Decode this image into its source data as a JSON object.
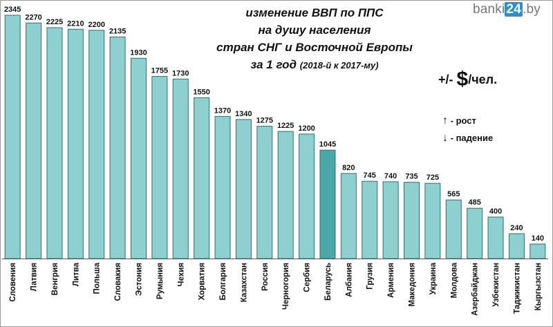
{
  "brand": {
    "prefix": "banki",
    "number": "24",
    "suffix": ".by"
  },
  "unit": {
    "prefix": "+/- ",
    "symbol": "$",
    "suffix": "/чел."
  },
  "legend": {
    "up_arrow": "↑",
    "up_label": "- рост",
    "down_arrow": "↓",
    "down_label": "- падение"
  },
  "colors": {
    "bar": "#8ecfcf",
    "bar_highlight": "#4aa8a8",
    "bar_stroke": "#2f6f6f"
  },
  "chart_data": {
    "type": "bar",
    "title_lines": [
      "изменение ВВП по ППС",
      "на душу населения",
      "стран СНГ и Восточной Европы",
      "за 1 год"
    ],
    "title_suffix": "(2018-й к 2017-му)",
    "categories": [
      "Словения",
      "Латвия",
      "Венгрия",
      "Литва",
      "Польша",
      "Словакия",
      "Эстония",
      "Румыния",
      "Чехия",
      "Хорватия",
      "Болгария",
      "Казахстан",
      "Россия",
      "Черногория",
      "Сербия",
      "Беларусь",
      "Албания",
      "Грузия",
      "Армения",
      "Македония",
      "Украина",
      "Молдова",
      "Азербайджан",
      "Узбекистан",
      "Таджикистан",
      "Кыргызстан"
    ],
    "values": [
      2345,
      2270,
      2225,
      2210,
      2200,
      2135,
      1930,
      1755,
      1730,
      1550,
      1370,
      1340,
      1275,
      1225,
      1200,
      1045,
      820,
      745,
      740,
      735,
      725,
      565,
      485,
      400,
      240,
      140
    ],
    "value_labels": [
      "2345",
      "2270",
      "2225",
      "2210",
      "2200",
      "2135",
      "1930",
      "1755",
      "1730",
      "1550",
      "1370",
      "1340",
      "1275",
      "1225",
      "1200",
      "1045",
      "820",
      "745",
      "740",
      "735",
      "725",
      "565",
      "485",
      "400",
      "240",
      "140"
    ],
    "highlight": "Беларусь",
    "ylim": [
      0,
      2345
    ],
    "grid": false,
    "legend_position": "right"
  }
}
